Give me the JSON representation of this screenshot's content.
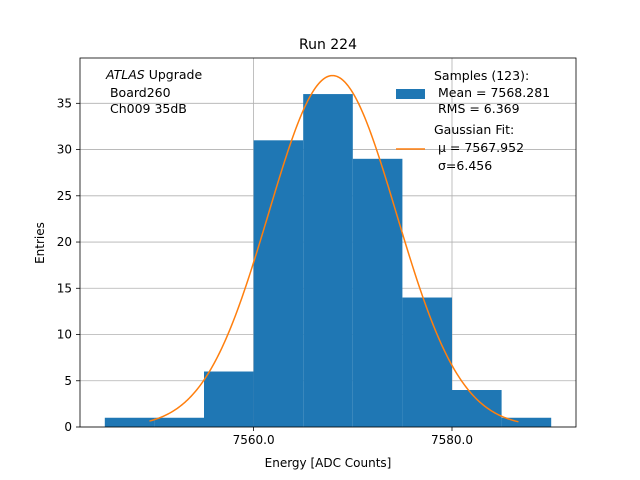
{
  "chart_data": {
    "type": "bar",
    "title": "Run 224",
    "xlabel": "Energy [ADC Counts]",
    "ylabel": "Entries",
    "xlim": [
      7542.5,
      7592.5
    ],
    "ylim": [
      0,
      39.9
    ],
    "xticks": [
      7560.0,
      7580.0
    ],
    "xtick_labels": [
      "7560.0",
      "7580.0"
    ],
    "yticks": [
      0,
      5,
      10,
      15,
      20,
      25,
      30,
      35
    ],
    "ytick_labels": [
      "0",
      "5",
      "10",
      "15",
      "20",
      "25",
      "30",
      "35"
    ],
    "grid": true,
    "legend_position": "top-right",
    "annotation": {
      "italic": "ATLAS",
      "line1_rest": " Upgrade",
      "line2": " Board260",
      "line3": " Ch009 35dB"
    },
    "histogram": {
      "name": "Samples (123):",
      "color": "#1f77b4",
      "bin_edges": [
        7545,
        7550,
        7555,
        7560,
        7565,
        7570,
        7575,
        7580,
        7585,
        7590
      ],
      "counts": [
        1,
        1,
        6,
        31,
        36,
        29,
        14,
        4,
        1
      ],
      "stats_lines": [
        "Samples (123):",
        " Mean = 7568.281",
        " RMS = 6.369"
      ]
    },
    "fit": {
      "name": "Gaussian Fit:",
      "color": "#ff7f0e",
      "mu": 7567.952,
      "sigma": 6.456,
      "amplitude": 38.0,
      "x_range": [
        7549.5,
        7586.7
      ],
      "stats_lines": [
        "Gaussian Fit:",
        "μ = 7567.952",
        "σ=6.456"
      ]
    }
  }
}
